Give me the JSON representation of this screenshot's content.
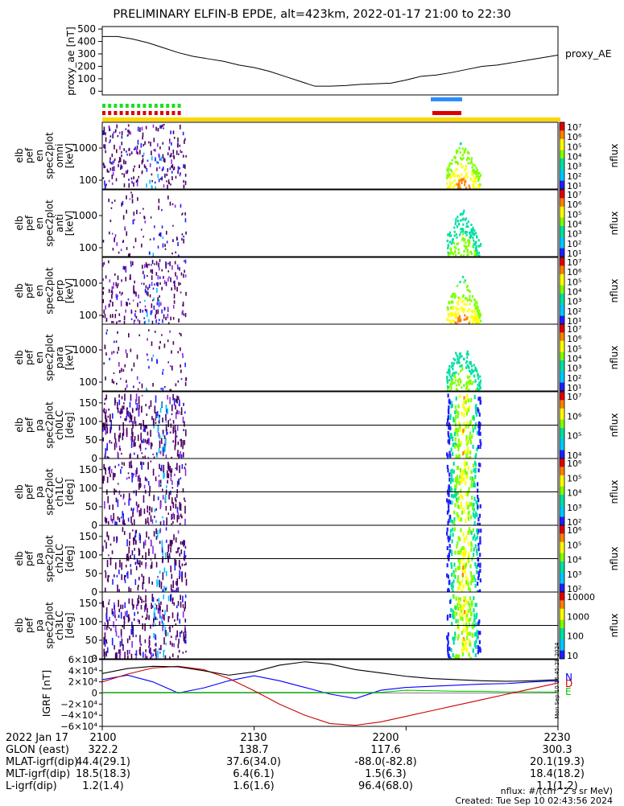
{
  "title": "PRELIMINARY ELFIN-B EPDE, alt=423km, 2022-01-17 21:00 to 22:30",
  "chart_data": [
    {
      "type": "line",
      "ylabel": "proxy_ae [nT]",
      "legend": "proxy_AE",
      "ylim": [
        -30,
        520
      ],
      "yticks": [
        0,
        100,
        200,
        300,
        400,
        500
      ],
      "x_minutes": [
        0,
        3,
        6,
        9,
        12,
        15,
        18,
        21,
        24,
        27,
        30,
        33,
        36,
        39,
        42,
        45,
        48,
        51,
        54,
        57,
        60,
        63,
        66,
        69,
        72,
        75,
        78,
        81,
        84,
        87,
        90
      ],
      "values": [
        440,
        440,
        420,
        390,
        350,
        310,
        280,
        260,
        240,
        210,
        190,
        160,
        120,
        80,
        40,
        40,
        45,
        55,
        60,
        65,
        90,
        120,
        130,
        150,
        175,
        200,
        210,
        230,
        250,
        270,
        290
      ]
    },
    {
      "type": "heatmap",
      "panels": [
        {
          "ylabel": [
            "elb",
            "pef",
            "en",
            "spec2plot",
            "omni",
            "[keV]"
          ],
          "yticks": [
            "1000",
            "100"
          ],
          "cblabel": "nflux"
        },
        {
          "ylabel": [
            "elb",
            "pef",
            "en",
            "spec2plot",
            "anti",
            "[keV]"
          ],
          "yticks": [
            "1000",
            "100"
          ],
          "cblabel": "nflux"
        },
        {
          "ylabel": [
            "elb",
            "pef",
            "en",
            "spec2plot",
            "perp",
            "[keV]"
          ],
          "yticks": [
            "1000",
            "100"
          ],
          "cblabel": "nflux"
        },
        {
          "ylabel": [
            "elb",
            "pef",
            "en",
            "spec2plot",
            "para",
            "[keV]"
          ],
          "yticks": [
            "1000",
            "100"
          ],
          "cblabel": "nflux"
        },
        {
          "ylabel": [
            "elb",
            "pef",
            "pa",
            "spec2plot",
            "ch0LC",
            "[deg]"
          ],
          "yticks": [
            "150",
            "100",
            "50",
            "0"
          ],
          "cblabel": "nflux"
        },
        {
          "ylabel": [
            "elb",
            "pef",
            "pa",
            "spec2plot",
            "ch1LC",
            "[deg]"
          ],
          "yticks": [
            "150",
            "100",
            "50",
            "0"
          ],
          "cblabel": "nflux"
        },
        {
          "ylabel": [
            "elb",
            "pef",
            "pa",
            "spec2plot",
            "ch2LC",
            "[deg]"
          ],
          "yticks": [
            "150",
            "100",
            "50",
            "0"
          ],
          "cblabel": "nflux"
        },
        {
          "ylabel": [
            "elb",
            "pef",
            "pa",
            "spec2plot",
            "ch3LC",
            "[deg]"
          ],
          "yticks": [
            "150",
            "100",
            "50",
            "0"
          ],
          "cblabel": "nflux"
        }
      ],
      "colorbar_labels": [
        [
          "10⁷",
          "10⁶",
          "10⁵",
          "10⁴",
          "10³",
          "10²",
          "10¹"
        ],
        [
          "10⁷",
          "10⁶",
          "10⁵",
          "10⁴",
          "10³",
          "10²",
          "10¹"
        ],
        [
          "10⁷",
          "10⁶",
          "10⁵",
          "10⁴",
          "10³",
          "10²",
          "10¹"
        ],
        [
          "10⁷",
          "10⁶",
          "10⁵",
          "10⁴",
          "10³",
          "10²",
          "10¹"
        ],
        [
          "10⁷",
          "10⁶",
          "10⁵",
          "10⁴"
        ],
        [
          "10⁶",
          "10⁵",
          "10⁴",
          "10³",
          "10²"
        ],
        [
          "10⁶",
          "10⁵",
          "10⁴",
          "10³",
          "10²"
        ],
        [
          "10000",
          "1000",
          "100",
          "10"
        ]
      ]
    },
    {
      "type": "line",
      "ylabel": "IGRF [nT]",
      "ylim": [
        -60000,
        60000
      ],
      "yticks": [
        "6×10⁴",
        "4×10⁴",
        "2×10⁴",
        "0",
        "−2×10⁴",
        "−4×10⁴",
        "−6×10⁴"
      ],
      "legend": [
        "N",
        "E",
        "D"
      ],
      "x_minutes": [
        0,
        5,
        10,
        15,
        20,
        25,
        30,
        35,
        40,
        45,
        50,
        55,
        60,
        65,
        70,
        75,
        80,
        85,
        90
      ],
      "series": [
        {
          "name": "N",
          "color": "#0000ff",
          "values": [
            24000,
            32000,
            20000,
            0,
            9000,
            22000,
            31000,
            22000,
            10000,
            -2000,
            -10000,
            5000,
            10000,
            12000,
            14000,
            16000,
            17000,
            20000,
            22000
          ]
        },
        {
          "name": "E",
          "color": "#00cc00",
          "values": [
            1000,
            1000,
            1000,
            1000,
            1000,
            1000,
            1000,
            1000,
            1000,
            1000,
            1000,
            1000,
            5000,
            4000,
            3000,
            3000,
            2000,
            2000,
            1500
          ]
        },
        {
          "name": "D",
          "color": "#cc0000",
          "values": [
            20000,
            34000,
            45000,
            48000,
            42000,
            26000,
            4000,
            -20000,
            -40000,
            -55000,
            -58000,
            -52000,
            -42000,
            -32000,
            -22000,
            -12000,
            -2000,
            8000,
            18000
          ]
        },
        {
          "name": "",
          "color": "#000000",
          "values": [
            35000,
            44000,
            48000,
            47000,
            40000,
            32000,
            38000,
            50000,
            56000,
            52000,
            42000,
            36000,
            30000,
            26000,
            24000,
            22000,
            21000,
            22000,
            24000
          ]
        }
      ]
    }
  ],
  "colorbar_label": "nflux",
  "ticks": {
    "labels": [
      "2022 Jan 17",
      "GLON (east)",
      "MLAT-igrf(dip)",
      "MLT-igrf(dip)",
      "L-igrf(dip)"
    ],
    "columns": [
      [
        "2100",
        "322.2",
        "44.4(29.1)",
        "18.5(18.3)",
        "1.2(1.4)"
      ],
      [
        "2130",
        "138.7",
        "37.6(34.0)",
        "6.4(6.1)",
        "1.6(1.6)"
      ],
      [
        "2200",
        "117.6",
        "-88.0(-82.8)",
        "1.5(6.3)",
        "96.4(68.0)"
      ],
      [
        "2230",
        "300.3",
        "20.1(19.3)",
        "18.4(18.2)",
        "1.1(1.2)"
      ]
    ]
  },
  "side_text": "Mon Sep 10 16:45:28 2024",
  "footnote": "nflux: #/(cm^2 s sr MeV)",
  "created": "Created: Tue Sep 10 02:43:56 2024"
}
